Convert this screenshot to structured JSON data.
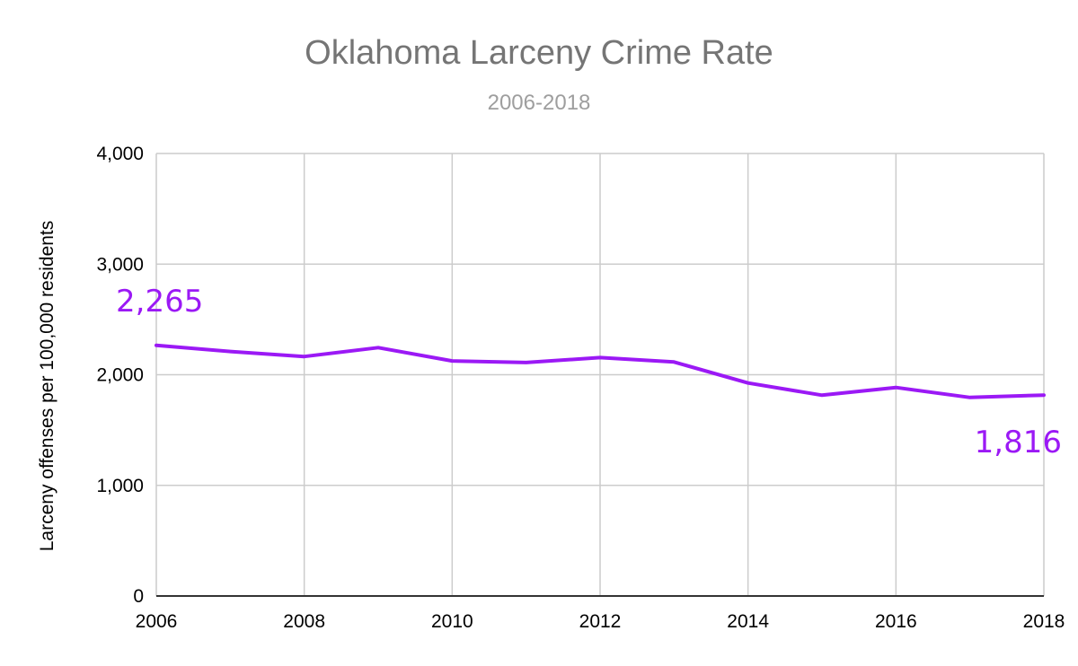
{
  "chart_data": {
    "type": "line",
    "title": "Oklahoma Larceny Crime Rate",
    "subtitle": "2006-2018",
    "xlabel": "",
    "ylabel": "Larceny offenses per 100,000 residents",
    "x": [
      2006,
      2007,
      2008,
      2009,
      2010,
      2011,
      2012,
      2013,
      2014,
      2015,
      2016,
      2017,
      2018
    ],
    "series": [
      {
        "values": [
          2265,
          2210,
          2165,
          2245,
          2125,
          2110,
          2155,
          2115,
          1925,
          1815,
          1885,
          1795,
          1816
        ]
      }
    ],
    "xlim": [
      2006,
      2018
    ],
    "ylim": [
      0,
      4000
    ],
    "x_ticks": [
      2006,
      2008,
      2010,
      2012,
      2014,
      2016,
      2018
    ],
    "x_tick_labels": [
      "2006",
      "2008",
      "2010",
      "2012",
      "2014",
      "2016",
      "2018"
    ],
    "y_ticks": [
      0,
      1000,
      2000,
      3000,
      4000
    ],
    "y_tick_labels": [
      "0",
      "1,000",
      "2,000",
      "3,000",
      "4,000"
    ],
    "annotations": [
      {
        "text": "2,265",
        "x": 2006,
        "y": 2265,
        "position": "above"
      },
      {
        "text": "1,816",
        "x": 2018,
        "y": 1816,
        "position": "below"
      }
    ],
    "grid": true,
    "legend": "none",
    "colors": {
      "line": "#9b19f5",
      "grid": "#cccccc",
      "axis": "#333333"
    }
  }
}
